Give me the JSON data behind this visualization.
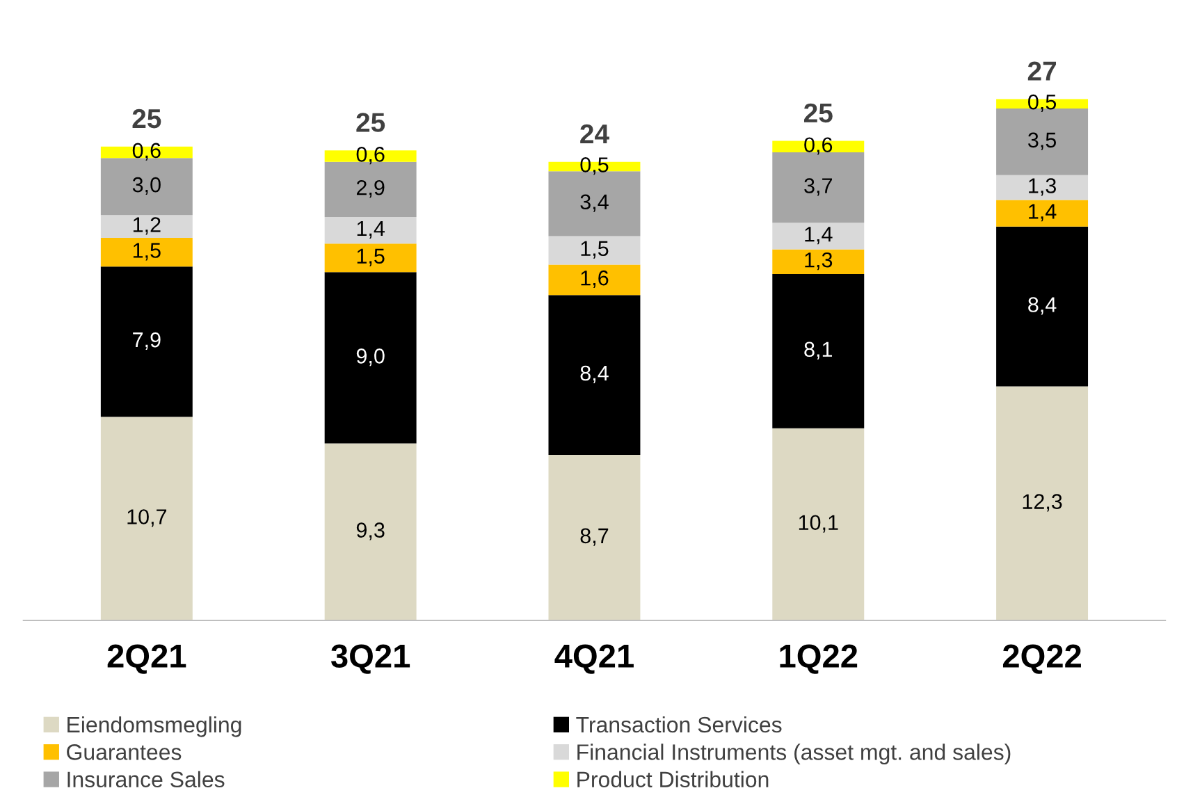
{
  "chart_data": {
    "type": "bar",
    "stacked": true,
    "legend": "bottom",
    "grid": false,
    "categories": [
      "2Q21",
      "3Q21",
      "4Q21",
      "1Q22",
      "2Q22"
    ],
    "series": [
      {
        "name": "Eiendomsmegling",
        "color": "#ddd9c3",
        "values": [
          10.7,
          9.3,
          8.7,
          10.1,
          12.3
        ],
        "value_labels": [
          "10,7",
          "9,3",
          "8,7",
          "10,1",
          "12,3"
        ]
      },
      {
        "name": "Transaction Services",
        "color": "#000000",
        "values": [
          7.9,
          9.0,
          8.4,
          8.1,
          8.4
        ],
        "value_labels": [
          "7,9",
          "9,0",
          "8,4",
          "8,1",
          "8,4"
        ]
      },
      {
        "name": "Guarantees",
        "color": "#ffc000",
        "values": [
          1.5,
          1.5,
          1.6,
          1.3,
          1.4
        ],
        "value_labels": [
          "1,5",
          "1,5",
          "1,6",
          "1,3",
          "1,4"
        ]
      },
      {
        "name": "Financial Instruments (asset mgt. and sales)",
        "color": "#d9d9d9",
        "values": [
          1.2,
          1.4,
          1.5,
          1.4,
          1.3
        ],
        "value_labels": [
          "1,2",
          "1,4",
          "1,5",
          "1,4",
          "1,3"
        ]
      },
      {
        "name": "Insurance Sales",
        "color": "#a6a6a6",
        "values": [
          3.0,
          2.9,
          3.4,
          3.7,
          3.5
        ],
        "value_labels": [
          "3,0",
          "2,9",
          "3,4",
          "3,7",
          "3,5"
        ]
      },
      {
        "name": "Product Distribution",
        "color": "#ffff00",
        "values": [
          0.6,
          0.6,
          0.5,
          0.6,
          0.5
        ],
        "value_labels": [
          "0,6",
          "0,6",
          "0,5",
          "0,6",
          "0,5"
        ]
      }
    ],
    "totals": [
      "25",
      "25",
      "24",
      "25",
      "27"
    ]
  }
}
